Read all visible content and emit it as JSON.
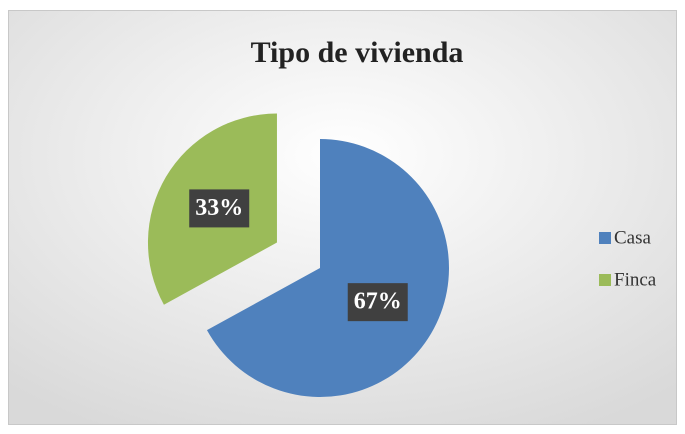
{
  "chart_data": {
    "type": "pie",
    "title": "Tipo de vivienda",
    "categories": [
      "Casa",
      "Finca"
    ],
    "values": [
      67,
      33
    ],
    "value_labels": [
      "67%",
      "33%"
    ],
    "colors": [
      "#4f81bd",
      "#9bbb59"
    ],
    "legend": "right"
  }
}
